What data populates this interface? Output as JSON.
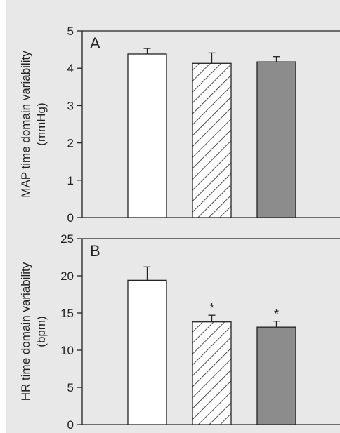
{
  "chart_data": [
    {
      "type": "bar",
      "panel_label": "A",
      "ylabel_line1": "MAP time domain variability",
      "ylabel_line2": "(mmHg)",
      "ylim": [
        0,
        5
      ],
      "yticks": [
        "0",
        "1",
        "2",
        "3",
        "4",
        "5"
      ],
      "ytick_values": [
        0,
        1,
        2,
        3,
        4,
        5
      ],
      "series": [
        {
          "values": [
            4.38,
            4.13,
            4.17
          ],
          "errors": [
            0.15,
            0.28,
            0.14
          ],
          "significance": [
            "",
            "",
            ""
          ]
        }
      ],
      "bar_styles": [
        "white",
        "hatched",
        "gray"
      ],
      "grid": false
    },
    {
      "type": "bar",
      "panel_label": "B",
      "ylabel_line1": "HR time domain variability",
      "ylabel_line2": "(bpm)",
      "ylim": [
        0,
        25
      ],
      "yticks": [
        "0",
        "5",
        "10",
        "15",
        "20",
        "25"
      ],
      "ytick_values": [
        0,
        5,
        10,
        15,
        20,
        25
      ],
      "series": [
        {
          "values": [
            19.4,
            13.8,
            13.1
          ],
          "errors": [
            1.8,
            0.9,
            0.8
          ],
          "significance": [
            "",
            "*",
            "*"
          ]
        }
      ],
      "bar_styles": [
        "white",
        "hatched",
        "gray"
      ],
      "grid": false
    }
  ],
  "colors": {
    "background": "#e8e8e8",
    "bar_gray": "#8c8c8c",
    "bar_white": "#ffffff",
    "stroke": "#222222"
  }
}
